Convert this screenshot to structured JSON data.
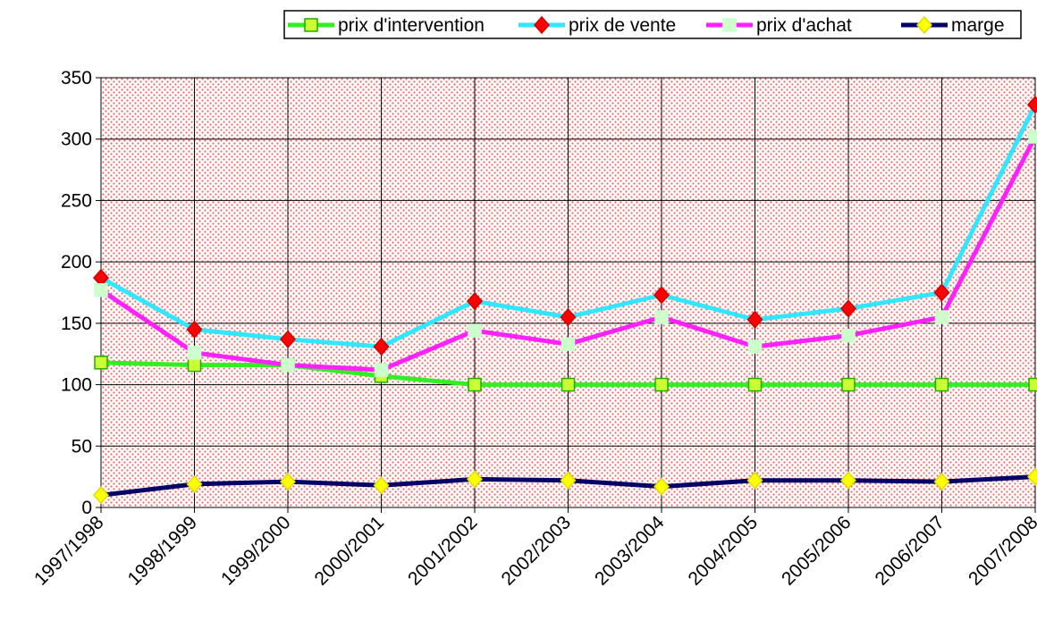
{
  "chart_data": {
    "type": "line",
    "categories": [
      "1997/1998",
      "1998/1999",
      "1999/2000",
      "2000/2001",
      "2001/2002",
      "2002/2003",
      "2003/2004",
      "2004/2005",
      "2005/2006",
      "2006/2007",
      "2007/2008"
    ],
    "series": [
      {
        "name": "prix d'intervention",
        "color": "#33ee22",
        "marker": "square",
        "marker_color": "#ccff33",
        "marker_edge": "#22aa00",
        "values": [
          118,
          116,
          116,
          107,
          100,
          100,
          100,
          100,
          100,
          100,
          100
        ]
      },
      {
        "name": "prix de vente",
        "color": "#33e6ff",
        "marker": "diamond",
        "marker_color": "#ff0000",
        "marker_edge": "#cc0000",
        "values": [
          187,
          145,
          137,
          131,
          168,
          155,
          173,
          153,
          162,
          175,
          328
        ]
      },
      {
        "name": "prix d'achat",
        "color": "#ff22ff",
        "marker": "square",
        "marker_color": "#ccffcc",
        "marker_edge": "#ccffcc",
        "values": [
          177,
          126,
          116,
          112,
          144,
          133,
          155,
          131,
          140,
          155,
          302
        ]
      },
      {
        "name": "marge",
        "color": "#000066",
        "marker": "diamond",
        "marker_color": "#ffff00",
        "marker_edge": "#dddd00",
        "values": [
          10,
          19,
          21,
          18,
          23,
          22,
          17,
          22,
          22,
          21,
          25
        ]
      }
    ],
    "ylim": [
      0,
      350
    ],
    "yticks": [
      0,
      50,
      100,
      150,
      200,
      250,
      300,
      350
    ],
    "grid": true,
    "legend": "top"
  }
}
